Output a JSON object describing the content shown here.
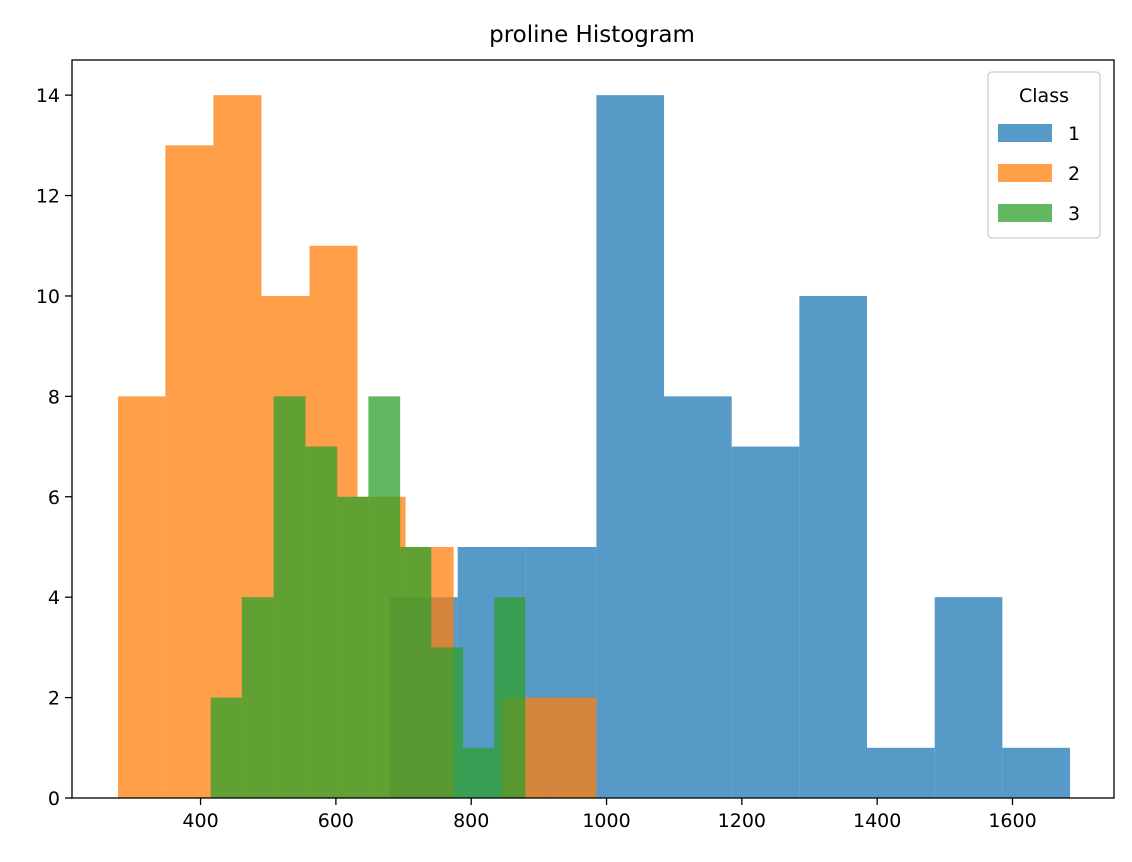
{
  "chart_data": {
    "type": "histogram",
    "title": "proline Histogram",
    "xlabel": "",
    "ylabel": "",
    "xlim": [
      210,
      1750
    ],
    "ylim": [
      0,
      14.7
    ],
    "xticks": [
      400,
      600,
      800,
      1000,
      1200,
      1400,
      1600
    ],
    "yticks": [
      0,
      2,
      4,
      6,
      8,
      10,
      12,
      14
    ],
    "grid": false,
    "legend": {
      "title": "Class",
      "placement": "top-right"
    },
    "series": [
      {
        "name": "1",
        "color": "#1f77b4",
        "opacity": 0.75,
        "bins": [
          {
            "x0": 680,
            "x1": 780,
            "count": 4
          },
          {
            "x0": 780,
            "x1": 880,
            "count": 5
          },
          {
            "x0": 880,
            "x1": 985,
            "count": 5
          },
          {
            "x0": 985,
            "x1": 1085,
            "count": 14
          },
          {
            "x0": 1085,
            "x1": 1185,
            "count": 8
          },
          {
            "x0": 1185,
            "x1": 1285,
            "count": 7
          },
          {
            "x0": 1285,
            "x1": 1385,
            "count": 10
          },
          {
            "x0": 1385,
            "x1": 1485,
            "count": 1
          },
          {
            "x0": 1485,
            "x1": 1585,
            "count": 4
          },
          {
            "x0": 1585,
            "x1": 1685,
            "count": 1
          }
        ]
      },
      {
        "name": "2",
        "color": "#ff7f0e",
        "opacity": 0.75,
        "bins": [
          {
            "x0": 278,
            "x1": 348,
            "count": 8
          },
          {
            "x0": 348,
            "x1": 419,
            "count": 13
          },
          {
            "x0": 419,
            "x1": 490,
            "count": 14
          },
          {
            "x0": 490,
            "x1": 561,
            "count": 10
          },
          {
            "x0": 561,
            "x1": 632,
            "count": 11
          },
          {
            "x0": 632,
            "x1": 703,
            "count": 6
          },
          {
            "x0": 703,
            "x1": 774,
            "count": 5
          },
          {
            "x0": 774,
            "x1": 845,
            "count": 0
          },
          {
            "x0": 845,
            "x1": 916,
            "count": 2
          },
          {
            "x0": 916,
            "x1": 985,
            "count": 2
          }
        ]
      },
      {
        "name": "3",
        "color": "#2ca02c",
        "opacity": 0.75,
        "bins": [
          {
            "x0": 415,
            "x1": 461,
            "count": 2
          },
          {
            "x0": 461,
            "x1": 508,
            "count": 4
          },
          {
            "x0": 508,
            "x1": 555,
            "count": 8
          },
          {
            "x0": 555,
            "x1": 602,
            "count": 7
          },
          {
            "x0": 602,
            "x1": 648,
            "count": 6
          },
          {
            "x0": 648,
            "x1": 695,
            "count": 8
          },
          {
            "x0": 695,
            "x1": 741,
            "count": 5
          },
          {
            "x0": 741,
            "x1": 788,
            "count": 3
          },
          {
            "x0": 788,
            "x1": 834,
            "count": 1
          },
          {
            "x0": 834,
            "x1": 880,
            "count": 4
          }
        ]
      }
    ]
  }
}
